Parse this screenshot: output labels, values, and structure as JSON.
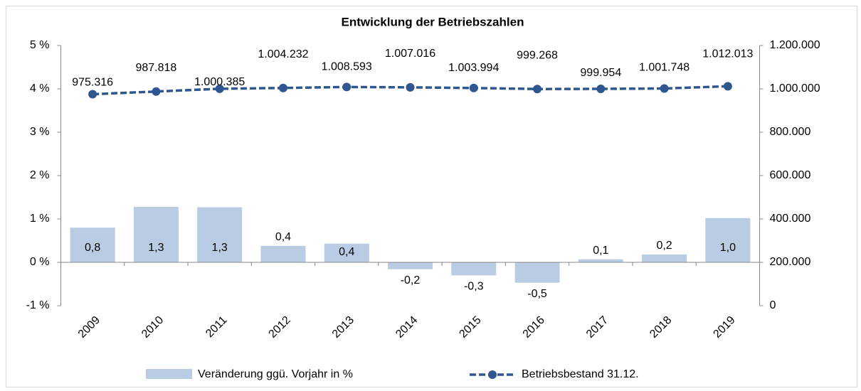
{
  "chart_data": {
    "type": "bar-line",
    "title": "Entwicklung der Betriebszahlen",
    "categories": [
      "2009",
      "2010",
      "2011",
      "2012",
      "2013",
      "2014",
      "2015",
      "2016",
      "2017",
      "2018",
      "2019"
    ],
    "series": [
      {
        "name": "Veränderung ggü. Vorjahr in %",
        "type": "bar",
        "color": "#b9cce4",
        "values": [
          0.8,
          1.28,
          1.27,
          0.38,
          0.43,
          -0.16,
          -0.3,
          -0.47,
          0.07,
          0.18,
          1.02
        ],
        "value_labels": [
          "0,8",
          "1,3",
          "1,3",
          "0,4",
          "0,4",
          "-0,2",
          "-0,3",
          "-0,5",
          "0,1",
          "0,2",
          "1,0"
        ]
      },
      {
        "name": "Betriebsbestand 31.12.",
        "type": "line",
        "axis": "y2",
        "color": "#2e568f",
        "values": [
          975316,
          987818,
          1000385,
          1004232,
          1008593,
          1007016,
          1003994,
          999268,
          999954,
          1001748,
          1012013
        ],
        "value_labels": [
          "975.316",
          "987.818",
          "1.000.385",
          "1.004.232",
          "1.008.593",
          "1.007.016",
          "1.003.994",
          "999.268",
          "999.954",
          "1.001.748",
          "1.012.013"
        ]
      }
    ],
    "ylim": [
      -1,
      5
    ],
    "yticks": [
      {
        "value": -1,
        "label": "-1 %"
      },
      {
        "value": 0,
        "label": "0 %"
      },
      {
        "value": 1,
        "label": "1 %"
      },
      {
        "value": 2,
        "label": "2 %"
      },
      {
        "value": 3,
        "label": "3 %"
      },
      {
        "value": 4,
        "label": "4 %"
      },
      {
        "value": 5,
        "label": "5 %"
      }
    ],
    "y2lim": [
      0,
      1200000
    ],
    "y2ticks": [
      0,
      {
        "value": 200000,
        "label": "200.000"
      },
      {
        "value": 400000,
        "label": "400.000"
      },
      {
        "value": 600000,
        "label": "600.000"
      },
      {
        "value": 800000,
        "label": "800.000"
      },
      {
        "value": 1000000,
        "label": "1.000.000"
      },
      {
        "value": 1200000,
        "label": "1.200.000"
      }
    ],
    "legend": "bottom"
  }
}
